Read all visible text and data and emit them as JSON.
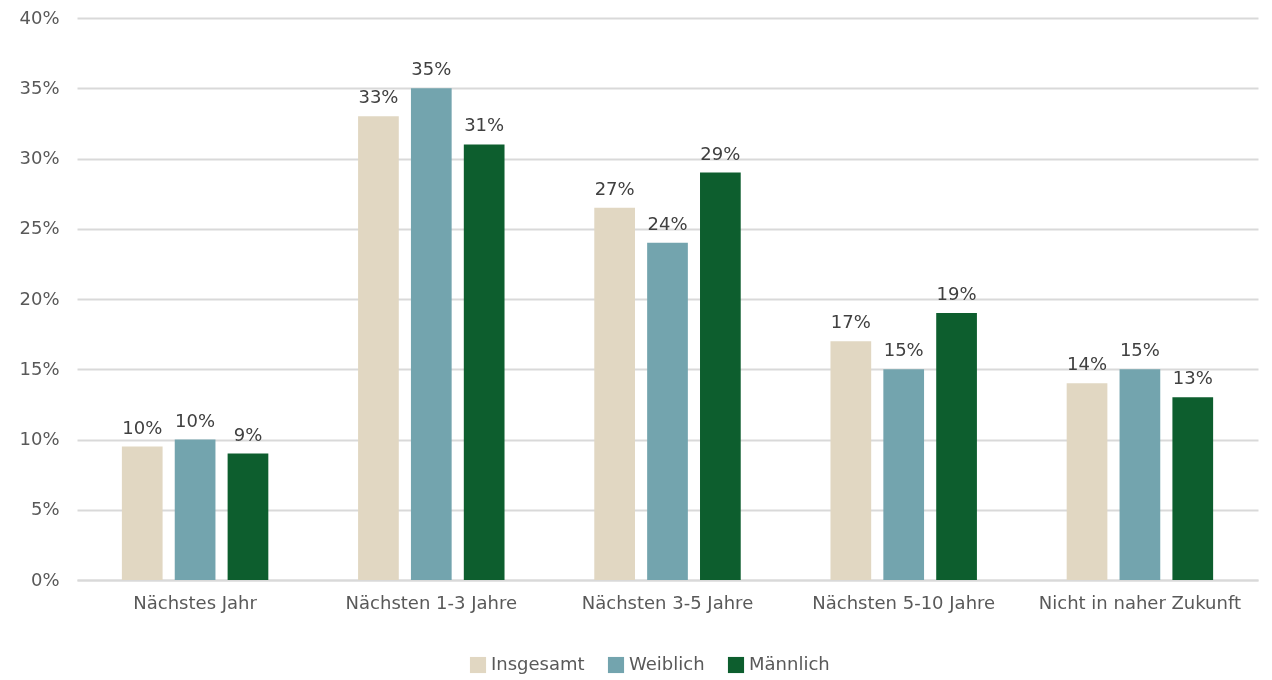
{
  "chart_data": {
    "type": "bar",
    "categories": [
      "Nächstes Jahr",
      "Nächsten 1-3 Jahre",
      "Nächsten 3-5 Jahre",
      "Nächsten 5-10 Jahre",
      "Nicht in naher Zukunft"
    ],
    "series": [
      {
        "name": "Insgesamt",
        "color": "#e1d7c2",
        "values": [
          9.5,
          33,
          26.5,
          17,
          14
        ],
        "value_labels": [
          "10%",
          "33%",
          "27%",
          "17%",
          "14%"
        ]
      },
      {
        "name": "Weiblich",
        "color": "#73a4ae",
        "values": [
          10,
          35,
          24,
          15,
          15
        ],
        "value_labels": [
          "10%",
          "35%",
          "24%",
          "15%",
          "15%"
        ]
      },
      {
        "name": "Männlich",
        "color": "#0d5e2e",
        "values": [
          9,
          31,
          29,
          19,
          13
        ],
        "value_labels": [
          "9%",
          "31%",
          "29%",
          "19%",
          "13%"
        ]
      }
    ],
    "ylim": [
      0,
      40
    ],
    "yticks": [
      {
        "value": 0,
        "label": "0%"
      },
      {
        "value": 5,
        "label": "5%"
      },
      {
        "value": 10,
        "label": "10%"
      },
      {
        "value": 15,
        "label": "15%"
      },
      {
        "value": 20,
        "label": "20%"
      },
      {
        "value": 25,
        "label": "25%"
      },
      {
        "value": 30,
        "label": "30%"
      },
      {
        "value": 35,
        "label": "35%"
      },
      {
        "value": 40,
        "label": "40%"
      }
    ],
    "grid": "y",
    "legend": "bottom"
  }
}
